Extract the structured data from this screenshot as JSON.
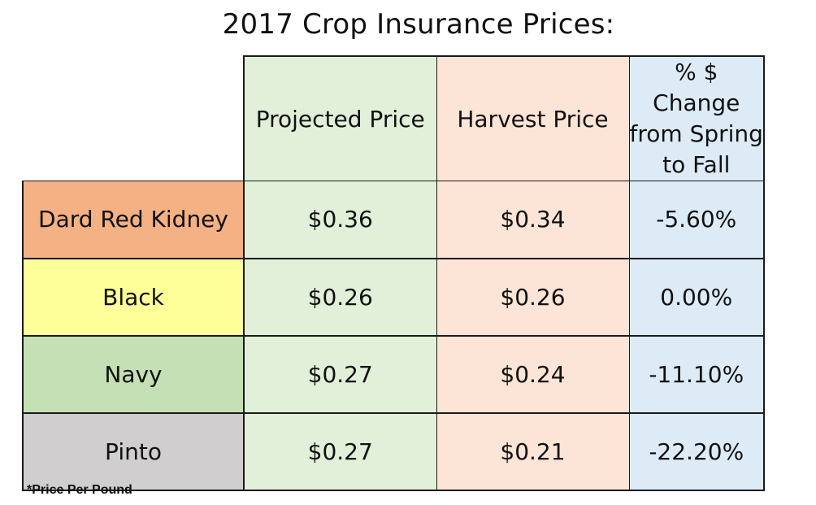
{
  "chart_data": {
    "type": "table",
    "title": "2017 Crop Insurance Prices:",
    "columns": [
      "",
      "Projected Price",
      "Harvest Price",
      "% $ Change from Spring to Fall"
    ],
    "rows": [
      {
        "label": "Dard Red Kidney",
        "projected": "$0.36",
        "harvest": "$0.34",
        "change": "-5.60%",
        "color": "#f4b183"
      },
      {
        "label": "Black",
        "projected": "$0.26",
        "harvest": "$0.26",
        "change": "0.00%",
        "color": "#ffff99"
      },
      {
        "label": "Navy",
        "projected": "$0.27",
        "harvest": "$0.24",
        "change": "-11.10%",
        "color": "#c5e0b4"
      },
      {
        "label": "Pinto",
        "projected": "$0.27",
        "harvest": "$0.21",
        "change": "-22.20%",
        "color": "#d0cece"
      }
    ],
    "column_colors": {
      "projected": "#e2efd9",
      "harvest": "#fce4d6",
      "change": "#ddebf7"
    },
    "footnote": "*Price Per Pound"
  }
}
